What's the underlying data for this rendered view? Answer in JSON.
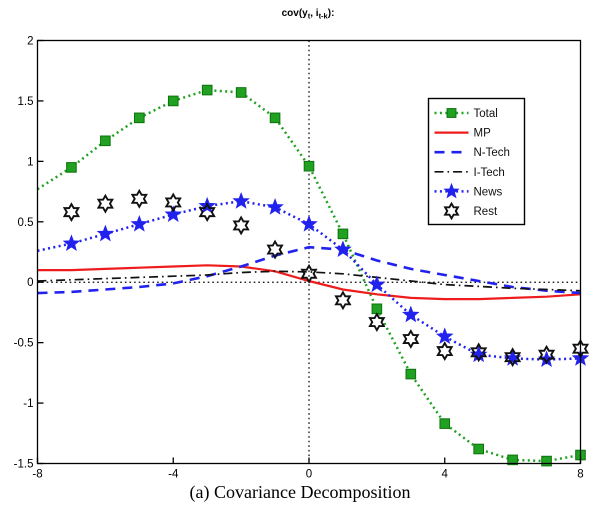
{
  "figure": {
    "caption": "(a) Covariance Decomposition"
  },
  "chart_data": {
    "type": "line",
    "title": "cov(y_t, i_t-k):",
    "title_segments": [
      {
        "text": "cov(y",
        "sub": false
      },
      {
        "text": "t",
        "sub": true
      },
      {
        "text": ", i",
        "sub": false
      },
      {
        "text": "t-k",
        "sub": true
      },
      {
        "text": "):",
        "sub": false
      }
    ],
    "xlabel": "",
    "ylabel": "",
    "xlim": [
      -8,
      8
    ],
    "ylim": [
      -1.5,
      2
    ],
    "x_ticks": [
      -8,
      -4,
      0,
      4,
      8
    ],
    "y_ticks": [
      2,
      1.5,
      1,
      0.5,
      0,
      -0.5,
      -1,
      -1.5
    ],
    "grid": false,
    "reference_lines": {
      "horizontal_at": 0,
      "vertical_at": 0,
      "style": "dotted",
      "color": "#000000"
    },
    "legend_position": "upper right",
    "x": [
      -8,
      -7,
      -6,
      -5,
      -4,
      -3,
      -2,
      -1,
      0,
      1,
      2,
      3,
      4,
      5,
      6,
      7,
      8
    ],
    "series": [
      {
        "name": "Total",
        "color": "#21a121",
        "line_style": "dotted",
        "marker": "square",
        "marker_min_x": -7,
        "values": [
          0.77,
          0.95,
          1.17,
          1.36,
          1.5,
          1.59,
          1.57,
          1.36,
          0.96,
          0.4,
          -0.22,
          -0.76,
          -1.17,
          -1.38,
          -1.47,
          -1.48,
          -1.43
        ]
      },
      {
        "name": "MP",
        "color": "#ee1c1c",
        "line_style": "solid",
        "marker": "none",
        "values": [
          0.1,
          0.1,
          0.11,
          0.12,
          0.13,
          0.14,
          0.13,
          0.09,
          0.01,
          -0.06,
          -0.1,
          -0.13,
          -0.14,
          -0.14,
          -0.13,
          -0.12,
          -0.1
        ]
      },
      {
        "name": "N-Tech",
        "color": "#2222ee",
        "line_style": "dashed",
        "marker": "none",
        "values": [
          -0.09,
          -0.08,
          -0.06,
          -0.04,
          -0.01,
          0.05,
          0.13,
          0.22,
          0.29,
          0.27,
          0.18,
          0.11,
          0.06,
          0.01,
          -0.04,
          -0.07,
          -0.09
        ]
      },
      {
        "name": "I-Tech",
        "color": "#111111",
        "line_style": "dashdot",
        "marker": "none",
        "values": [
          0.01,
          0.02,
          0.03,
          0.04,
          0.05,
          0.06,
          0.08,
          0.09,
          0.085,
          0.07,
          0.04,
          0.01,
          -0.02,
          -0.035,
          -0.05,
          -0.06,
          -0.07
        ]
      },
      {
        "name": "News",
        "color": "#2222ee",
        "line_style": "dotted",
        "marker": "star5",
        "marker_min_x": -7,
        "values": [
          0.26,
          0.32,
          0.4,
          0.48,
          0.56,
          0.63,
          0.67,
          0.62,
          0.48,
          0.27,
          -0.02,
          -0.27,
          -0.45,
          -0.6,
          -0.63,
          -0.64,
          -0.63
        ]
      },
      {
        "name": "Rest",
        "color": "#111111",
        "line_style": "none",
        "marker": "hexagram",
        "values": [
          null,
          0.58,
          0.65,
          0.69,
          0.66,
          0.58,
          0.47,
          0.27,
          0.07,
          -0.15,
          -0.33,
          -0.47,
          -0.57,
          -0.58,
          -0.62,
          -0.6,
          -0.55
        ]
      }
    ]
  }
}
